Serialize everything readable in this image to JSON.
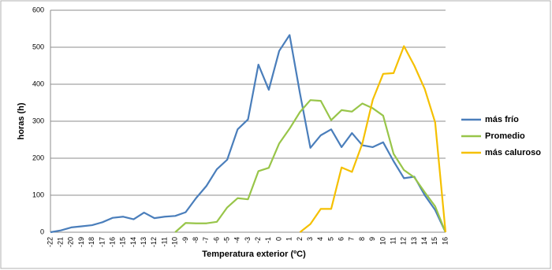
{
  "chart_data": {
    "type": "line",
    "x_label": "Temperatura exterior (ºC)",
    "y_label": "horas (h)",
    "categories": [
      "-22",
      "-21",
      "-20",
      "-19",
      "-18",
      "-17",
      "-16",
      "-15",
      "-14",
      "-13",
      "-12",
      "-11",
      "-10",
      "-9",
      "-8",
      "-7",
      "-6",
      "-5",
      "-4",
      "-3",
      "-2",
      "-1",
      "0",
      "1",
      "2",
      "3",
      "4",
      "5",
      "6",
      "7",
      "8",
      "9",
      "10",
      "11",
      "12",
      "13",
      "14",
      "15",
      "16"
    ],
    "series": [
      {
        "name": "más frío",
        "color": "#4a7ebb",
        "values": [
          0,
          5,
          13,
          16,
          19,
          27,
          39,
          42,
          35,
          53,
          38,
          42,
          44,
          54,
          92,
          125,
          170,
          196,
          278,
          305,
          453,
          385,
          490,
          533,
          375,
          228,
          262,
          278,
          230,
          268,
          235,
          230,
          243,
          192,
          146,
          150,
          100,
          60,
          0
        ]
      },
      {
        "name": "Promedio",
        "color": "#98c549",
        "values": [
          null,
          null,
          null,
          null,
          null,
          null,
          null,
          null,
          null,
          null,
          null,
          null,
          0,
          25,
          24,
          24,
          28,
          67,
          92,
          89,
          165,
          174,
          240,
          280,
          325,
          357,
          355,
          303,
          330,
          326,
          348,
          335,
          315,
          212,
          168,
          148,
          108,
          70,
          0
        ]
      },
      {
        "name": "más caluroso",
        "color": "#f5c000",
        "values": [
          null,
          null,
          null,
          null,
          null,
          null,
          null,
          null,
          null,
          null,
          null,
          null,
          null,
          null,
          null,
          null,
          null,
          null,
          null,
          null,
          null,
          null,
          null,
          null,
          0,
          22,
          63,
          63,
          175,
          163,
          240,
          358,
          428,
          430,
          503,
          450,
          387,
          297,
          0
        ]
      }
    ],
    "ylim": [
      0,
      600
    ],
    "yticks": [
      0,
      100,
      200,
      300,
      400,
      500,
      600
    ],
    "grid": true,
    "legend": "right"
  }
}
